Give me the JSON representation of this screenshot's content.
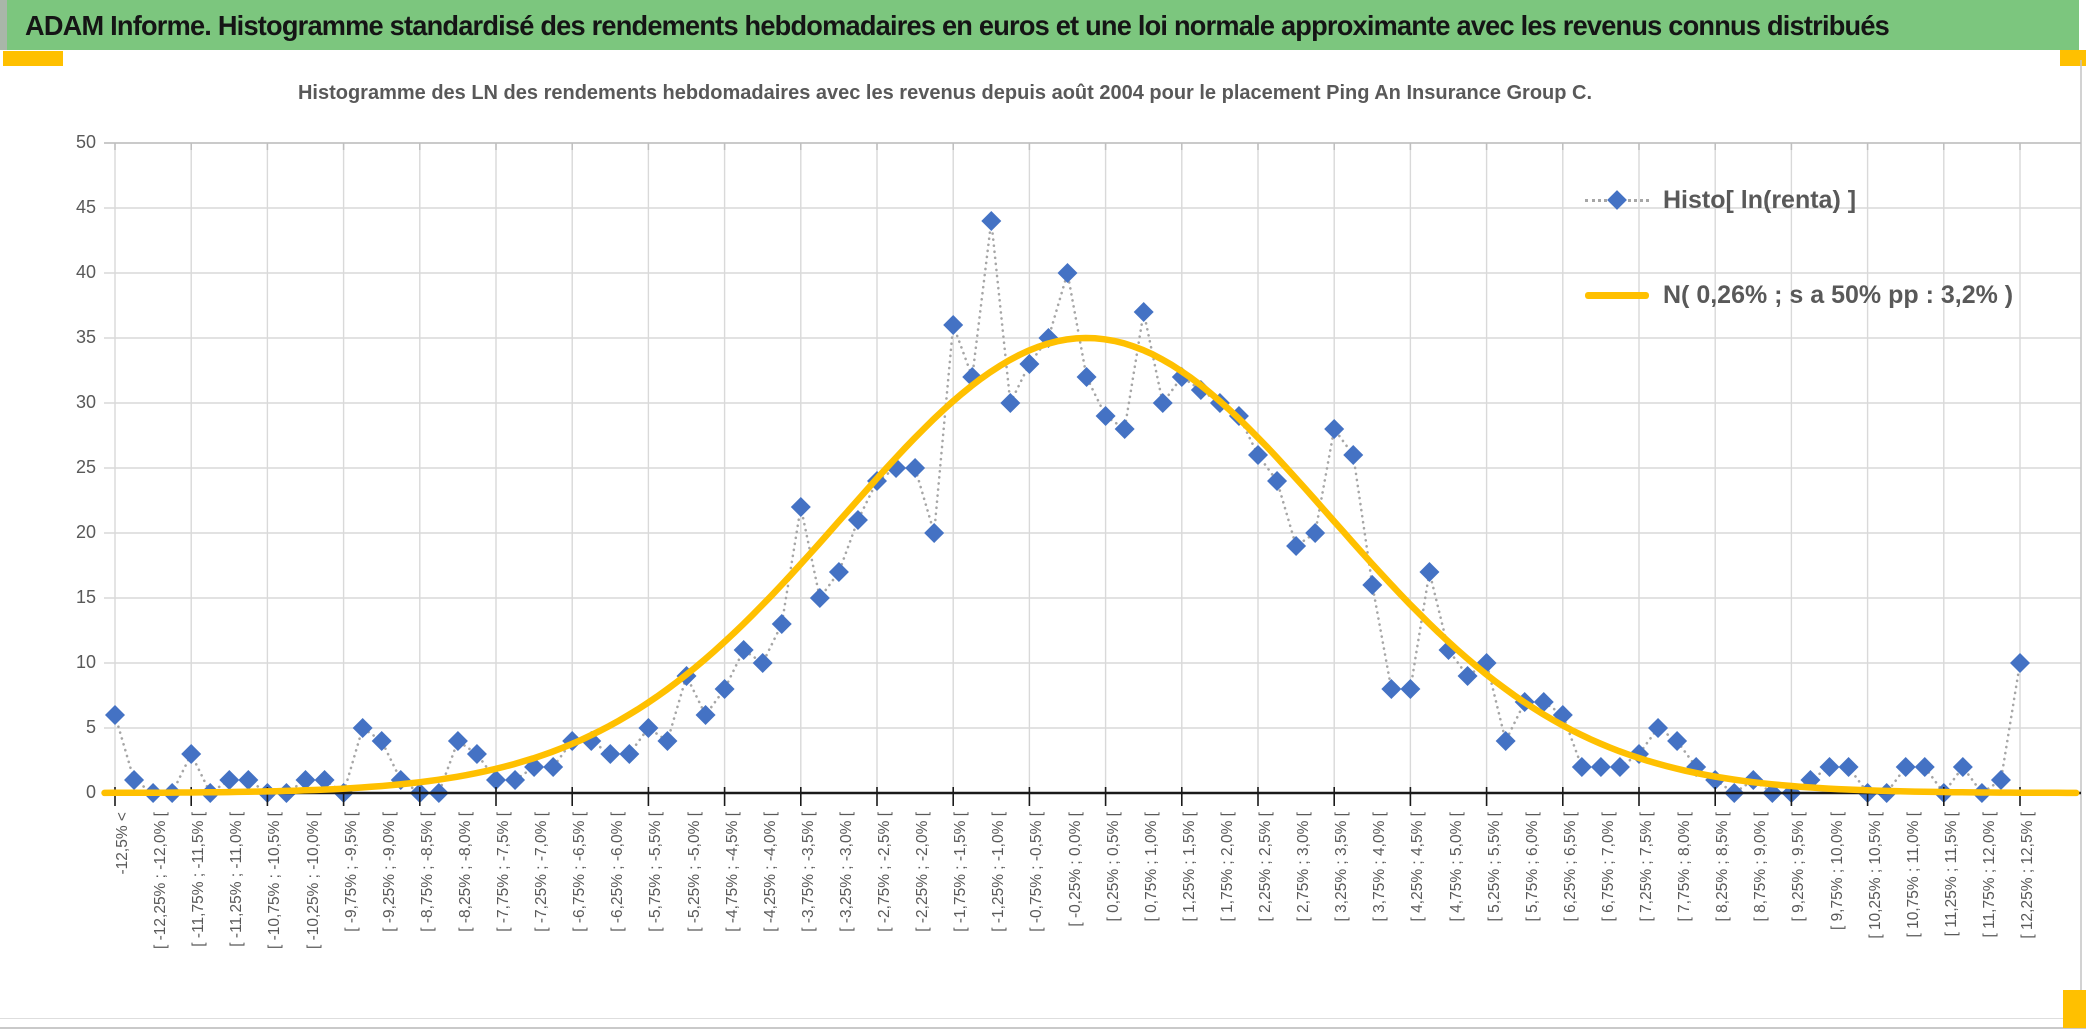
{
  "window": {
    "banner_title": "ADAM Informe. Histogramme standardisé des rendements hebdomadaires en euros et une loi normale approximante avec les revenus connus distribués"
  },
  "chart": {
    "title": "Histogramme des LN des rendements hebdomadaires avec les revenus depuis août 2004 pour le placement Ping An Insurance Group C.",
    "legend": [
      {
        "label": "Histo[ ln(renta) ]",
        "marker": "blue-diamond-on-dotted-gray-line"
      },
      {
        "label": "N( 0,26% ; s a 50% pp : 3,2% )",
        "marker": "orange-solid-line"
      }
    ],
    "colors": {
      "histogram_marker": "#4472C4",
      "normal_curve": "#FFC000",
      "dotted_connector": "#A6A6A6",
      "banner_green": "#7CC67E",
      "accent_orange": "#FFC000",
      "axis_black": "#1a1a1a",
      "gridline_gray": "#D9D9D9",
      "text_gray": "#595959"
    }
  },
  "chart_data": {
    "type": "line",
    "title": "Histogramme des LN des rendements hebdomadaires avec les revenus depuis août 2004 pour le placement Ping An Insurance Group C.",
    "ylim": [
      0,
      50
    ],
    "y_ticks": [
      50,
      45,
      40,
      35,
      30,
      25,
      20,
      15,
      10,
      5,
      0
    ],
    "grid": true,
    "legend_position": "top-right",
    "label_every_n_bins": 2,
    "x_tick_labels": [
      "-12,5% <",
      "[ -12,25% ; -12,0% [",
      "[ -11,75% ; -11,5% [",
      "[ -11,25% ; -11,0% [",
      "[ -10,75% ; -10,5% [",
      "[ -10,25% ; -10,0% [",
      "[ -9,75% ; -9,5% [",
      "[ -9,25% ; -9,0% [",
      "[ -8,75% ; -8,5% [",
      "[ -8,25% ; -8,0% [",
      "[ -7,75% ; -7,5% [",
      "[ -7,25% ; -7,0% [",
      "[ -6,75% ; -6,5% [",
      "[ -6,25% ; -6,0% [",
      "[ -5,75% ; -5,5% [",
      "[ -5,25% ; -5,0% [",
      "[ -4,75% ; -4,5% [",
      "[ -4,25% ; -4,0% [",
      "[ -3,75% ; -3,5% [",
      "[ -3,25% ; -3,0% [",
      "[ -2,75% ; -2,5% [",
      "[ -2,25% ; -2,0% [",
      "[ -1,75% ; -1,5% [",
      "[ -1,25% ; -1,0% [",
      "[ -0,75% ; -0,5% [",
      "[ -0,25% ; 0,0% [",
      "[ 0,25% ; 0,5% [",
      "[ 0,75% ; 1,0% [",
      "[ 1,25% ; 1,5% [",
      "[ 1,75% ; 2,0% [",
      "[ 2,25% ; 2,5% [",
      "[ 2,75% ; 3,0% [",
      "[ 3,25% ; 3,5% [",
      "[ 3,75% ; 4,0% [",
      "[ 4,25% ; 4,5% [",
      "[ 4,75% ; 5,0% [",
      "[ 5,25% ; 5,5% [",
      "[ 5,75% ; 6,0% [",
      "[ 6,25% ; 6,5% [",
      "[ 6,75% ; 7,0% [",
      "[ 7,25% ; 7,5% [",
      "[ 7,75% ; 8,0% [",
      "[ 8,25% ; 8,5% [",
      "[ 8,75% ; 9,0% [",
      "[ 9,25% ; 9,5% [",
      "[ 9,75% ; 10,0% [",
      "[ 10,25% ; 10,5% [",
      "[ 10,75% ; 11,0% [",
      "[ 11,25% ; 11,5% [",
      "[ 11,75% ; 12,0% [",
      "[ 12,25% ; 12,5% ["
    ],
    "series": [
      {
        "name": "Histo[ ln(renta) ]",
        "type": "scatter-dotted-line",
        "marker": "diamond",
        "color": "#4472C4",
        "values": [
          6,
          1,
          0,
          0,
          3,
          0,
          1,
          1,
          0,
          0,
          1,
          1,
          0,
          5,
          4,
          1,
          0,
          0,
          4,
          3,
          1,
          1,
          2,
          2,
          4,
          4,
          3,
          3,
          5,
          4,
          9,
          6,
          8,
          11,
          10,
          13,
          22,
          15,
          17,
          21,
          24,
          25,
          25,
          20,
          36,
          32,
          44,
          30,
          33,
          35,
          40,
          32,
          29,
          28,
          37,
          30,
          32,
          31,
          30,
          29,
          26,
          24,
          19,
          20,
          28,
          26,
          16,
          8,
          8,
          17,
          11,
          9,
          10,
          4,
          7,
          7,
          6,
          2,
          2,
          2,
          3,
          5,
          4,
          2,
          1,
          0,
          1,
          0,
          0,
          1,
          2,
          2,
          0,
          0,
          2,
          2,
          0,
          2,
          0,
          1,
          10
        ]
      },
      {
        "name": "N( 0,26% ; s a 50% pp : 3,2% )",
        "type": "normal-curve",
        "color": "#FFC000",
        "normal": {
          "peak": 35,
          "mean_label": "0,26%",
          "sd_label": "3,2%",
          "center_bin": 52,
          "sigma_bins": 12.8
        }
      }
    ]
  }
}
